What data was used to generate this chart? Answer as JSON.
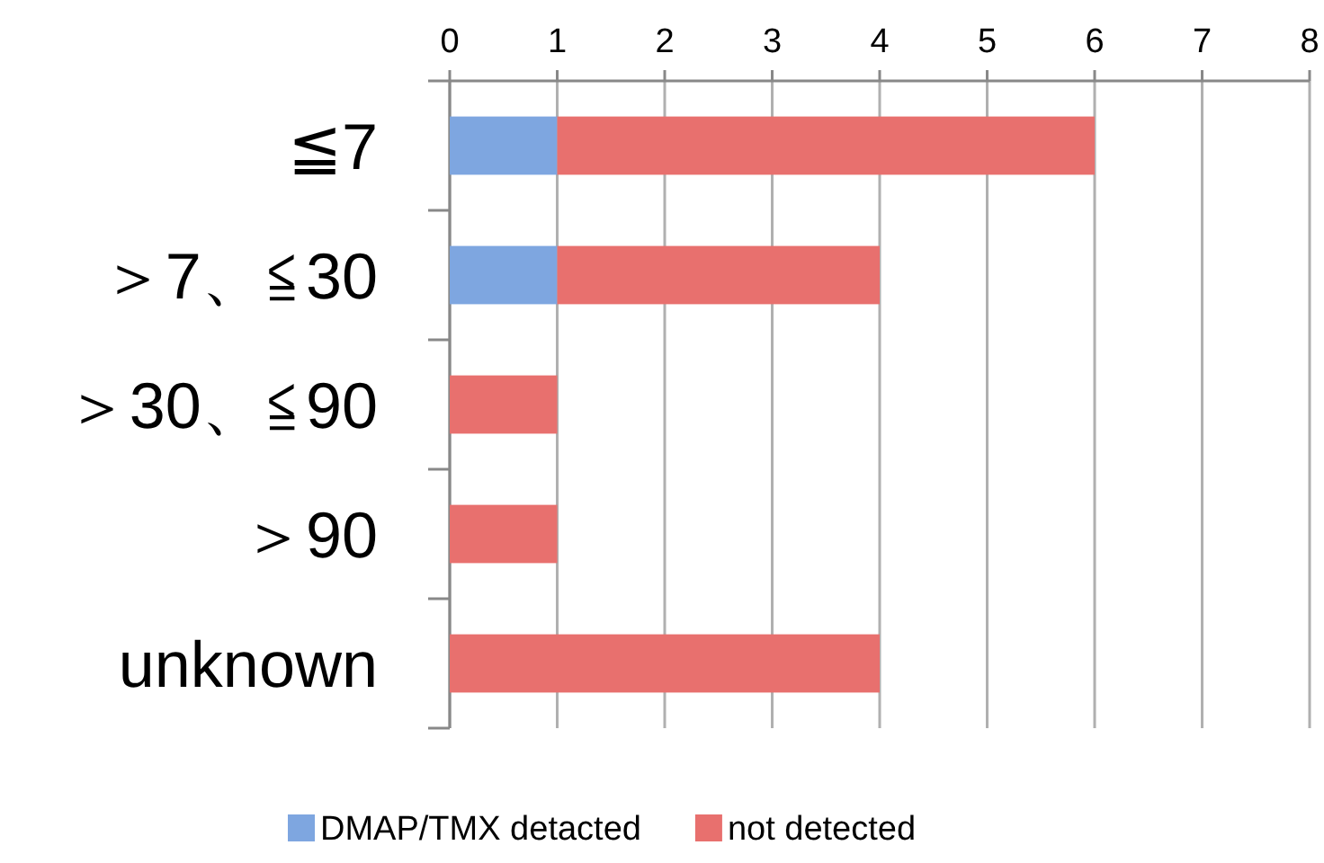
{
  "chart_data": {
    "type": "bar",
    "orientation": "horizontal",
    "stacked": true,
    "categories": [
      "≦7",
      "＞7、≦30",
      "＞30、≦90",
      "＞90",
      "unknown"
    ],
    "series": [
      {
        "name": "DMAP/TMX detacted",
        "color": "#7ea6e0",
        "values": [
          1,
          1,
          0,
          0,
          0
        ]
      },
      {
        "name": "not detected",
        "color": "#e8706e",
        "values": [
          5,
          3,
          1,
          1,
          4
        ]
      }
    ],
    "xlim": [
      0,
      8
    ],
    "xticks": [
      0,
      1,
      2,
      3,
      4,
      5,
      6,
      7,
      8
    ],
    "grid": "x",
    "legend": "bottom"
  }
}
